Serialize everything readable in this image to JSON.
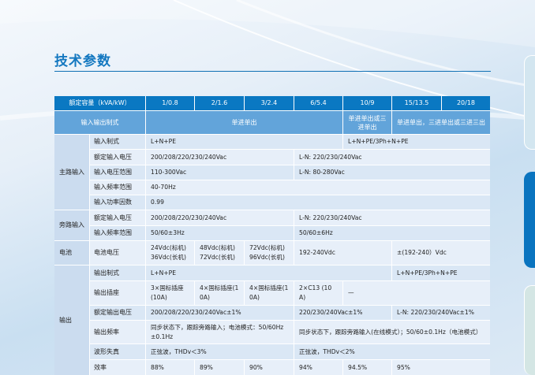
{
  "title": "技术参数",
  "colors": {
    "header": "#0a78c2",
    "subheader": "#62a4da",
    "accent": "#1478c0"
  },
  "table": {
    "header": {
      "label": "额定容量（kVA/kW）",
      "capacities": [
        "1/0.8",
        "2/1.6",
        "3/2.4",
        "6/5.4",
        "10/9",
        "15/13.5",
        "20/18"
      ]
    },
    "mode": {
      "label": "输入输出制式",
      "values": [
        "单进单出",
        "单进单出或三进单出",
        "单进单出，三进单出或三进三出"
      ]
    },
    "main_input": {
      "label": "主路输入",
      "rows": [
        {
          "label": "输入制式",
          "values": [
            "L+N+PE",
            "L+N+PE/3Ph+N+PE"
          ]
        },
        {
          "label": "额定输入电压",
          "values": [
            "200/208/220/230/240Vac",
            "L-N: 220/230/240Vac"
          ]
        },
        {
          "label": "输入电压范围",
          "values": [
            "110-300Vac",
            "L-N: 80-280Vac"
          ]
        },
        {
          "label": "输入频率范围",
          "values": [
            "40-70Hz"
          ]
        },
        {
          "label": "输入功率因数",
          "values": [
            "0.99"
          ]
        }
      ]
    },
    "bypass_input": {
      "label": "旁路输入",
      "rows": [
        {
          "label": "额定输入电压",
          "values": [
            "200/208/220/230/240Vac",
            "L-N: 220/230/240Vac"
          ]
        },
        {
          "label": "输入频率范围",
          "values": [
            "50/60±3Hz",
            "50/60±6Hz"
          ]
        }
      ]
    },
    "battery": {
      "label": "电池",
      "rows": [
        {
          "label": "电池电压",
          "values": [
            "24Vdc(标机) 36Vdc(长机)",
            "48Vdc(标机) 72Vdc(长机)",
            "72Vdc(标机) 96Vdc(长机)",
            "192-240Vdc",
            "±(192-240）Vdc"
          ]
        }
      ]
    },
    "output": {
      "label": "输出",
      "rows": [
        {
          "label": "输出制式",
          "values": [
            "L+N+PE",
            "L+N+PE/3Ph+N+PE"
          ]
        },
        {
          "label": "输出插座",
          "values": [
            "3×国标插座(10A)",
            "4×国标插座(10A)",
            "4×国标插座(10A)",
            "2×C13 (10A)",
            "—"
          ]
        },
        {
          "label": "额定输出电压",
          "values": [
            "200/208/220/230/240Vac±1%",
            "220/230/240Vac±1%",
            "L-N: 220/230/240Vac±1%"
          ]
        },
        {
          "label": "输出频率",
          "values": [
            "同步状态下，跟踪旁路输入；电池模式：50/60Hz±0.1Hz",
            "同步状态下，跟踪旁路输入(在线模式）；50/60±0.1Hz（电池模式）"
          ]
        },
        {
          "label": "波形失真",
          "values": [
            "正弦波，THDv＜3%",
            "正弦波，THDv＜2%"
          ]
        },
        {
          "label": "效率",
          "values": [
            "88%",
            "89%",
            "90%",
            "94%",
            "94.5%",
            "95%"
          ]
        }
      ]
    }
  }
}
